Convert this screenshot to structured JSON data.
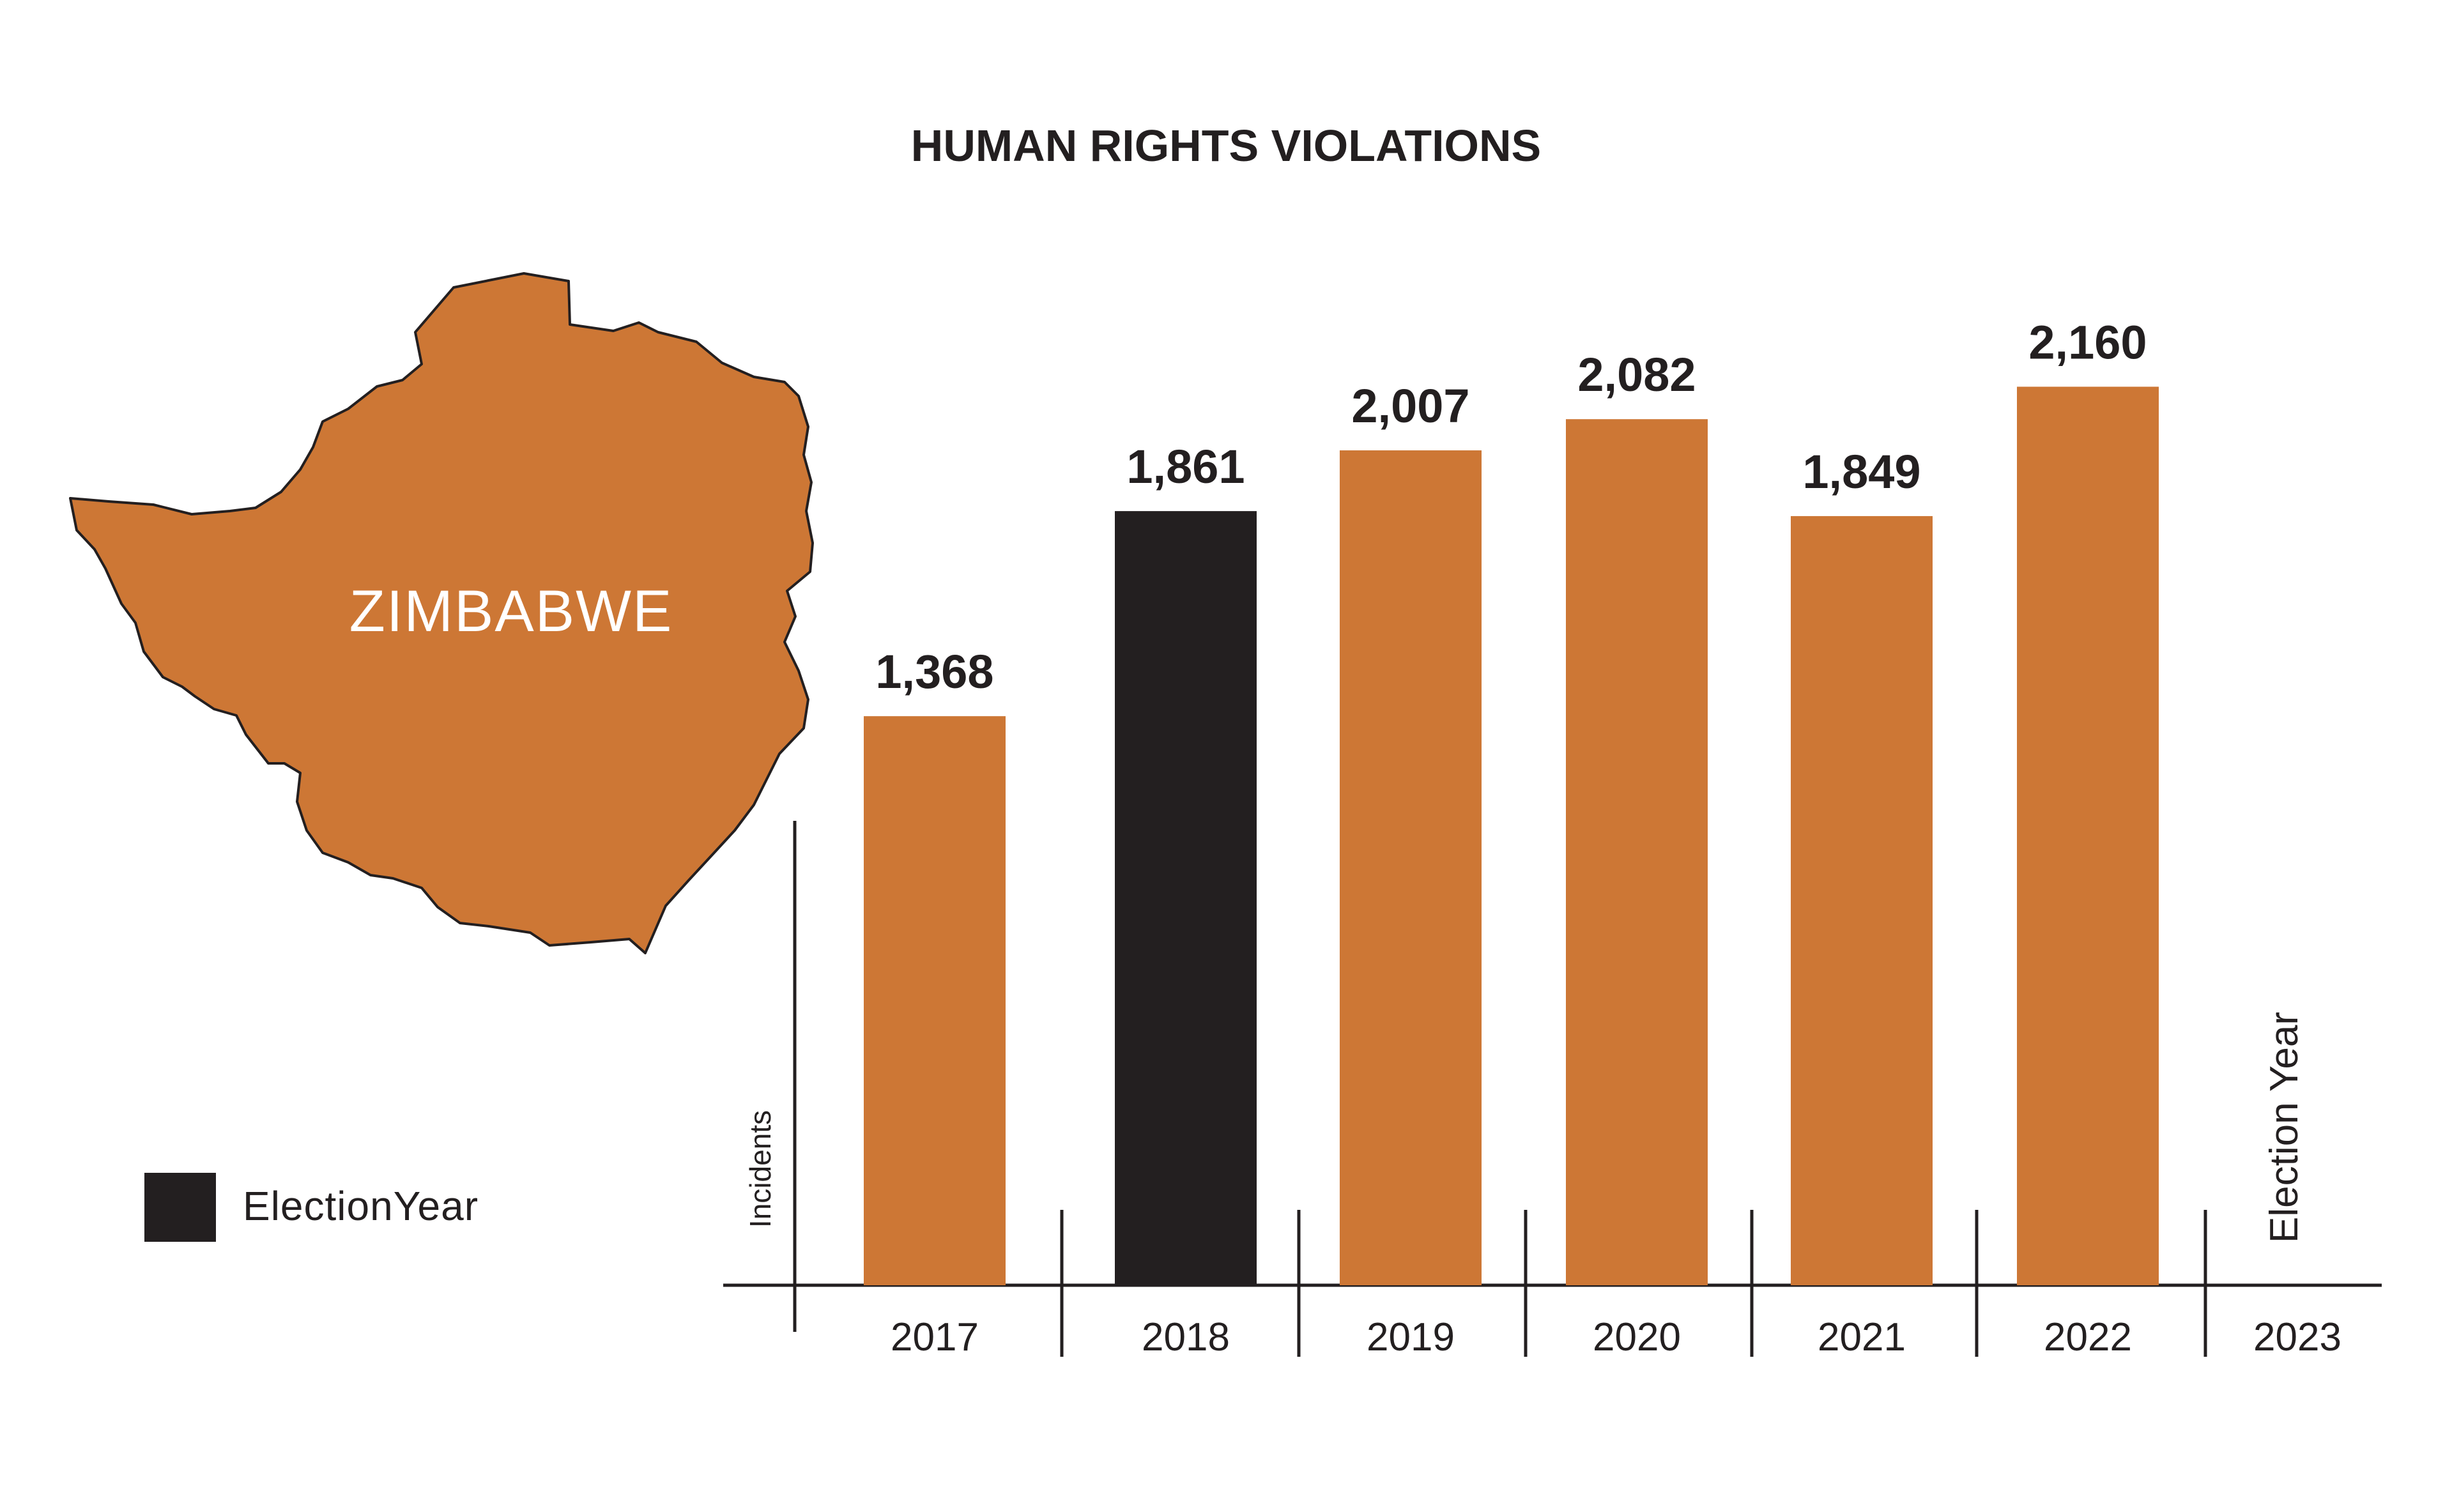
{
  "map": {
    "label": "ZIMBABWE",
    "icon": "zimbabwe-map-icon",
    "fill_color": "#cd7735"
  },
  "legend": {
    "label": "ElectionYear",
    "swatch_color": "#231f20"
  },
  "chart_data": {
    "type": "bar",
    "title": "HUMAN RIGHTS VIOLATIONS",
    "ylabel": "Incidents",
    "xlabel": "",
    "categories": [
      "2017",
      "2018",
      "2019",
      "2020",
      "2021",
      "2022",
      "2023"
    ],
    "values": [
      1368,
      1861,
      2007,
      2082,
      1849,
      2160,
      null
    ],
    "value_labels": [
      "1,368",
      "1,861",
      "2,007",
      "2,082",
      "1,849",
      "2,160",
      ""
    ],
    "election_years": [
      "2018",
      "2023"
    ],
    "annotation_2023": "Election Year",
    "bar_color": "#cd7735",
    "election_color": "#231f20",
    "grid": false,
    "legend_position": "left"
  }
}
